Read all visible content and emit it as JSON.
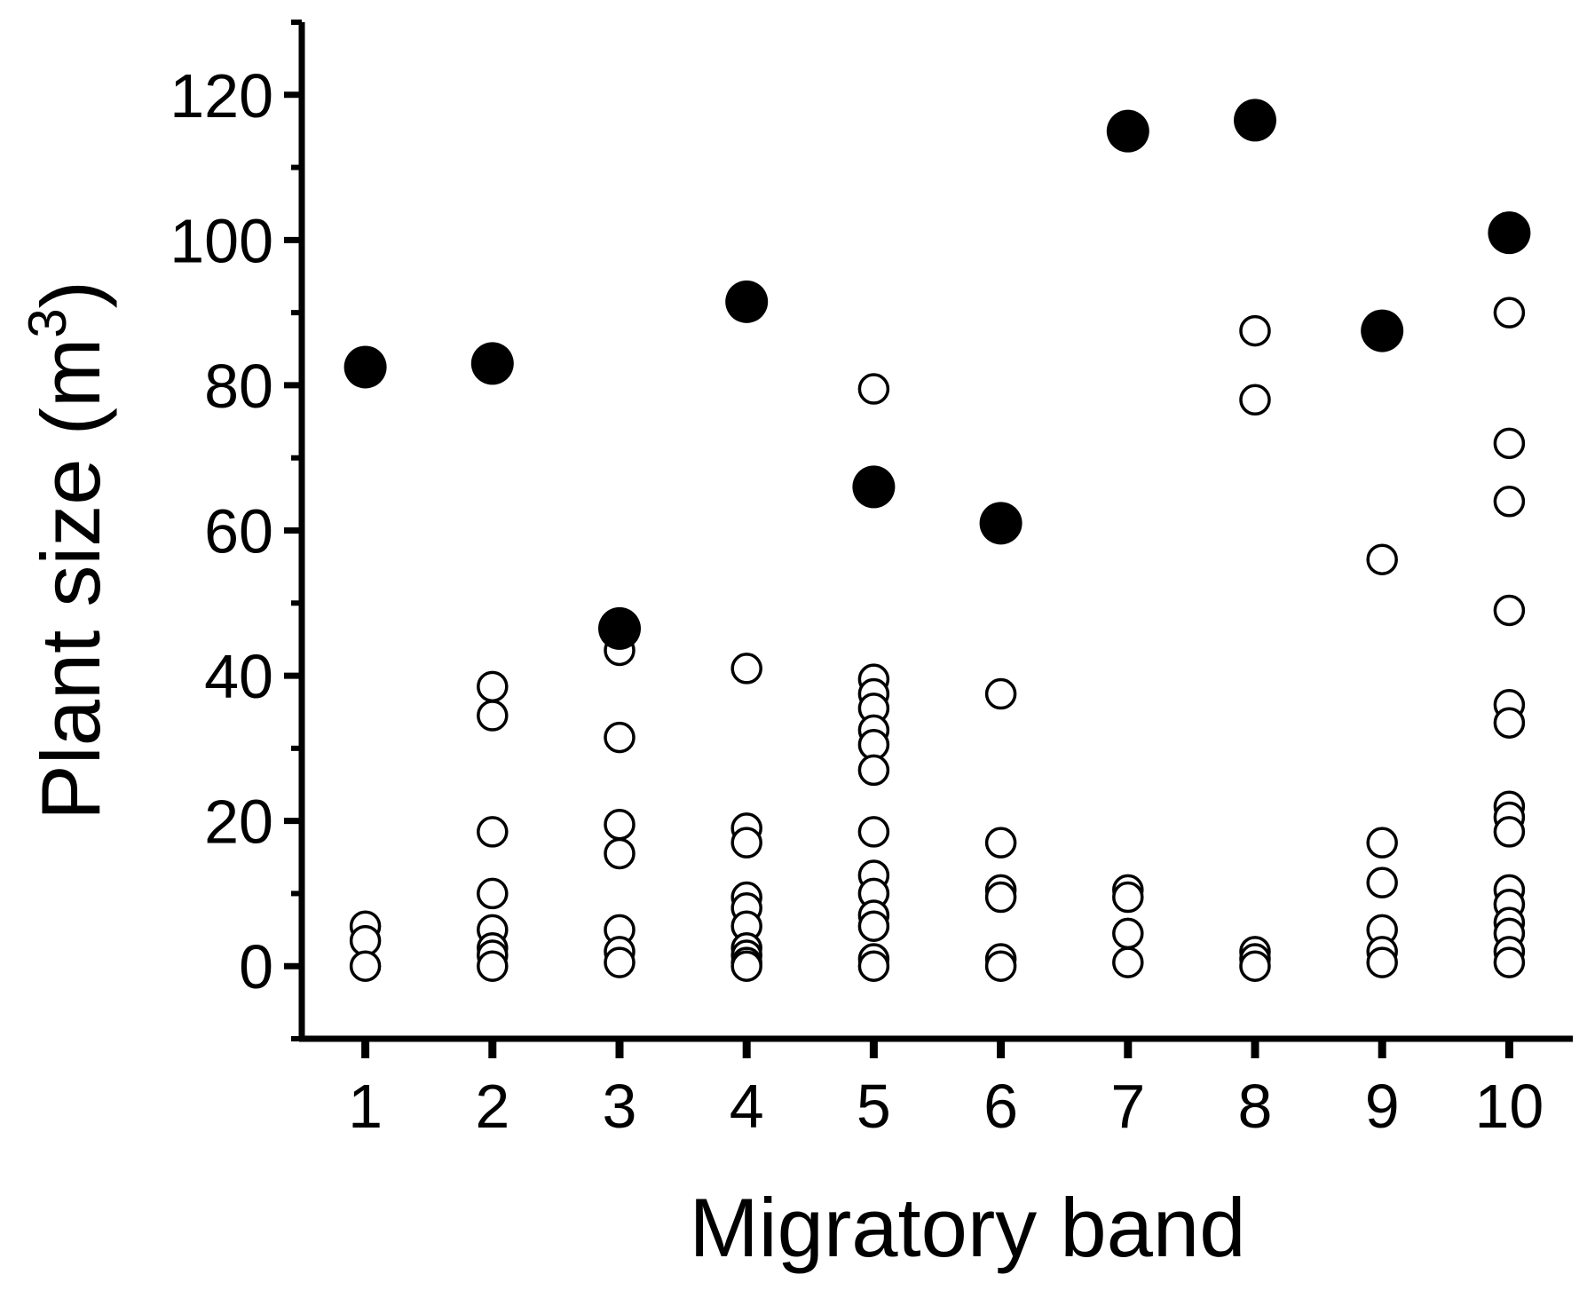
{
  "chart_data": {
    "type": "scatter",
    "xlabel": "Migratory band",
    "ylabel": {
      "main": "Plant size (m",
      "sup": "3",
      "close": ")"
    },
    "xlim": [
      0.5,
      10.5
    ],
    "ylim": [
      -10,
      130
    ],
    "x_ticks": [
      1,
      2,
      3,
      4,
      5,
      6,
      7,
      8,
      9,
      10
    ],
    "y_ticks": [
      0,
      20,
      40,
      60,
      80,
      100,
      120
    ],
    "y_minor_step": 10,
    "grid": false,
    "series": [
      {
        "marker": "open-circle",
        "color": "#000000",
        "points": [
          [
            1,
            5.5
          ],
          [
            1,
            3.5
          ],
          [
            1,
            0
          ],
          [
            2,
            38.5
          ],
          [
            2,
            34.5
          ],
          [
            2,
            18.5
          ],
          [
            2,
            10
          ],
          [
            2,
            5
          ],
          [
            2,
            2.5
          ],
          [
            2,
            1.5
          ],
          [
            2,
            0
          ],
          [
            3,
            43.5
          ],
          [
            3,
            31.5
          ],
          [
            3,
            19.5
          ],
          [
            3,
            15.5
          ],
          [
            3,
            5
          ],
          [
            3,
            2
          ],
          [
            3,
            0.5
          ],
          [
            4,
            41
          ],
          [
            4,
            19
          ],
          [
            4,
            17
          ],
          [
            4,
            9.5
          ],
          [
            4,
            8
          ],
          [
            4,
            5.5
          ],
          [
            4,
            2.5
          ],
          [
            4,
            1.5
          ],
          [
            4,
            0.5
          ],
          [
            4,
            0
          ],
          [
            5,
            79.5
          ],
          [
            5,
            39.5
          ],
          [
            5,
            37.5
          ],
          [
            5,
            35.5
          ],
          [
            5,
            32.5
          ],
          [
            5,
            30.5
          ],
          [
            5,
            27
          ],
          [
            5,
            18.5
          ],
          [
            5,
            12.5
          ],
          [
            5,
            10
          ],
          [
            5,
            7
          ],
          [
            5,
            5.5
          ],
          [
            5,
            1
          ],
          [
            5,
            0
          ],
          [
            6,
            37.5
          ],
          [
            6,
            17
          ],
          [
            6,
            10.5
          ],
          [
            6,
            9.5
          ],
          [
            6,
            1
          ],
          [
            6,
            0
          ],
          [
            7,
            10.5
          ],
          [
            7,
            9.5
          ],
          [
            7,
            4.5
          ],
          [
            7,
            0.5
          ],
          [
            8,
            87.5
          ],
          [
            8,
            78
          ],
          [
            8,
            2
          ],
          [
            8,
            1
          ],
          [
            8,
            0
          ],
          [
            9,
            56
          ],
          [
            9,
            17
          ],
          [
            9,
            11.5
          ],
          [
            9,
            5
          ],
          [
            9,
            2
          ],
          [
            9,
            0.5
          ],
          [
            10,
            90
          ],
          [
            10,
            72
          ],
          [
            10,
            64
          ],
          [
            10,
            49
          ],
          [
            10,
            36
          ],
          [
            10,
            33.5
          ],
          [
            10,
            22
          ],
          [
            10,
            20.5
          ],
          [
            10,
            18.5
          ],
          [
            10,
            10.5
          ],
          [
            10,
            8.5
          ],
          [
            10,
            6
          ],
          [
            10,
            4.5
          ],
          [
            10,
            2
          ],
          [
            10,
            0.5
          ]
        ]
      },
      {
        "marker": "filled-circle",
        "color": "#000000",
        "points": [
          [
            1,
            82.5
          ],
          [
            2,
            83
          ],
          [
            3,
            46.5
          ],
          [
            4,
            91.5
          ],
          [
            5,
            66
          ],
          [
            6,
            61
          ],
          [
            7,
            115
          ],
          [
            8,
            116.5
          ],
          [
            9,
            87.5
          ],
          [
            10,
            101
          ]
        ]
      }
    ]
  }
}
